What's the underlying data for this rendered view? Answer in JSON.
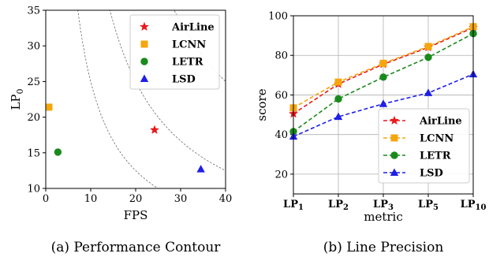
{
  "chart_data": [
    {
      "type": "scatter",
      "caption": "(a) Performance Contour",
      "xlabel": "FPS",
      "ylabel": "LP",
      "ylabel_sub": "0",
      "xlim": [
        0,
        40
      ],
      "ylim": [
        10,
        35
      ],
      "xticks": [
        0,
        10,
        20,
        30,
        40
      ],
      "yticks": [
        10,
        15,
        20,
        25,
        30,
        35
      ],
      "contours": [
        250,
        500,
        1000,
        1500,
        2000,
        2500
      ],
      "legend_position": "top-right",
      "grid": false,
      "points": [
        {
          "name": "AirLine",
          "x": 24.2,
          "y": 18.2,
          "color": "#e8191c",
          "marker": "star"
        },
        {
          "name": "LCNN",
          "x": 0.7,
          "y": 21.4,
          "color": "#f5a60d",
          "marker": "square"
        },
        {
          "name": "LETR",
          "x": 2.7,
          "y": 15.1,
          "color": "#1a8a1c",
          "marker": "circle"
        },
        {
          "name": "LSD",
          "x": 34.5,
          "y": 12.7,
          "color": "#1f1fe6",
          "marker": "triangle"
        }
      ]
    },
    {
      "type": "line",
      "caption": "(b) Line Precision",
      "xlabel": "metric",
      "ylabel": "score",
      "ylim": [
        10,
        100
      ],
      "yticks": [
        20,
        40,
        60,
        80,
        100
      ],
      "categories": [
        {
          "main": "LP",
          "sub": "1"
        },
        {
          "main": "LP",
          "sub": "2"
        },
        {
          "main": "LP",
          "sub": "3"
        },
        {
          "main": "LP",
          "sub": "5"
        },
        {
          "main": "LP",
          "sub": "10"
        }
      ],
      "legend_position": "bottom-right",
      "grid": true,
      "series": [
        {
          "name": "AirLine",
          "values": [
            50.5,
            65.5,
            75.5,
            84.0,
            94.0
          ],
          "color": "#e8191c",
          "marker": "star"
        },
        {
          "name": "LCNN",
          "values": [
            53.5,
            66.5,
            76.0,
            84.5,
            94.5
          ],
          "color": "#f5a60d",
          "marker": "square"
        },
        {
          "name": "LETR",
          "values": [
            41.5,
            58.0,
            69.0,
            79.0,
            91.0
          ],
          "color": "#1a8a1c",
          "marker": "circle"
        },
        {
          "name": "LSD",
          "values": [
            39.0,
            49.0,
            55.5,
            61.0,
            70.5
          ],
          "color": "#1f1fe6",
          "marker": "triangle"
        }
      ]
    }
  ]
}
